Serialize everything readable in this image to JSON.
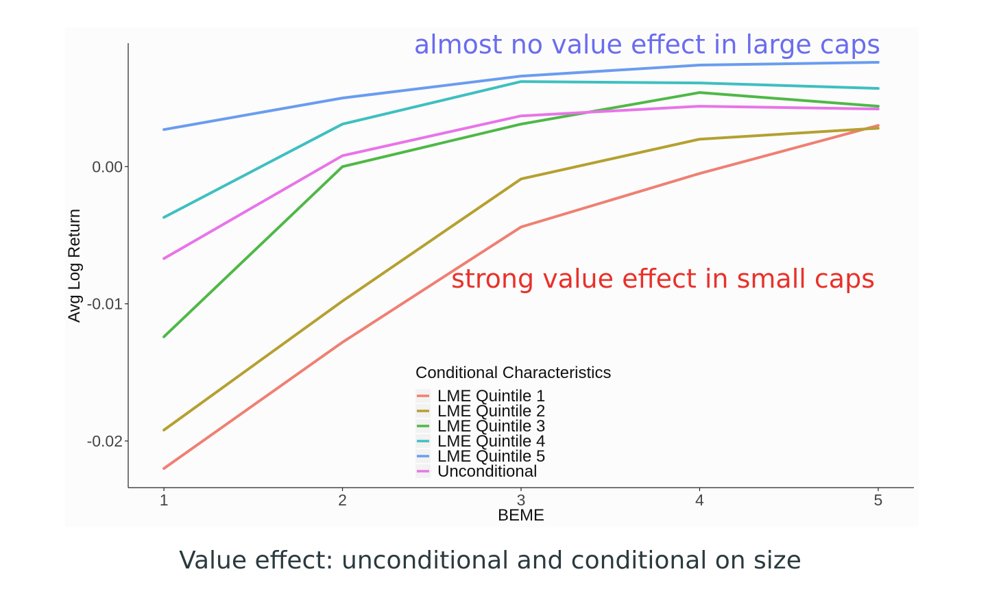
{
  "caption": "Value effect: unconditional and conditional on size",
  "annotations": {
    "top": {
      "text": "almost no value effect in large caps",
      "color": "#6a6cf0"
    },
    "bottom": {
      "text": "strong value effect in small caps",
      "color": "#e8312a"
    }
  },
  "legend": {
    "title": "Conditional Characteristics",
    "position": "inside-bottom-center"
  },
  "chart_data": {
    "type": "line",
    "xlabel": "BEME",
    "ylabel": "Avg Log Return",
    "x": [
      1,
      2,
      3,
      4,
      5
    ],
    "x_ticks": [
      "1",
      "2",
      "3",
      "4",
      "5"
    ],
    "xlim": [
      0.8,
      5.2
    ],
    "y_ticks": [
      {
        "value": 0.0,
        "label": "0.00"
      },
      {
        "value": -0.01,
        "label": "-0.01"
      },
      {
        "value": -0.02,
        "label": "-0.02"
      }
    ],
    "ylim": [
      -0.0234,
      0.009
    ],
    "grid": false,
    "series": [
      {
        "name": "LME Quintile 1",
        "color": "#f07f72",
        "values": [
          -0.022,
          -0.0128,
          -0.0044,
          -0.0005,
          0.003
        ]
      },
      {
        "name": "LME Quintile 2",
        "color": "#b5a031",
        "values": [
          -0.0192,
          -0.0098,
          -0.0009,
          0.002,
          0.0028
        ]
      },
      {
        "name": "LME Quintile 3",
        "color": "#4fb847",
        "values": [
          -0.0124,
          0.0,
          0.0031,
          0.0054,
          0.0044
        ]
      },
      {
        "name": "LME Quintile 4",
        "color": "#3fbfc0",
        "values": [
          -0.0037,
          0.0031,
          0.0062,
          0.0061,
          0.0057
        ]
      },
      {
        "name": "LME Quintile 5",
        "color": "#6a9cf0",
        "values": [
          0.0027,
          0.005,
          0.0066,
          0.0074,
          0.0076
        ]
      },
      {
        "name": "Unconditional",
        "color": "#e874e8",
        "values": [
          -0.0067,
          0.0008,
          0.0037,
          0.0044,
          0.0042
        ]
      }
    ]
  }
}
